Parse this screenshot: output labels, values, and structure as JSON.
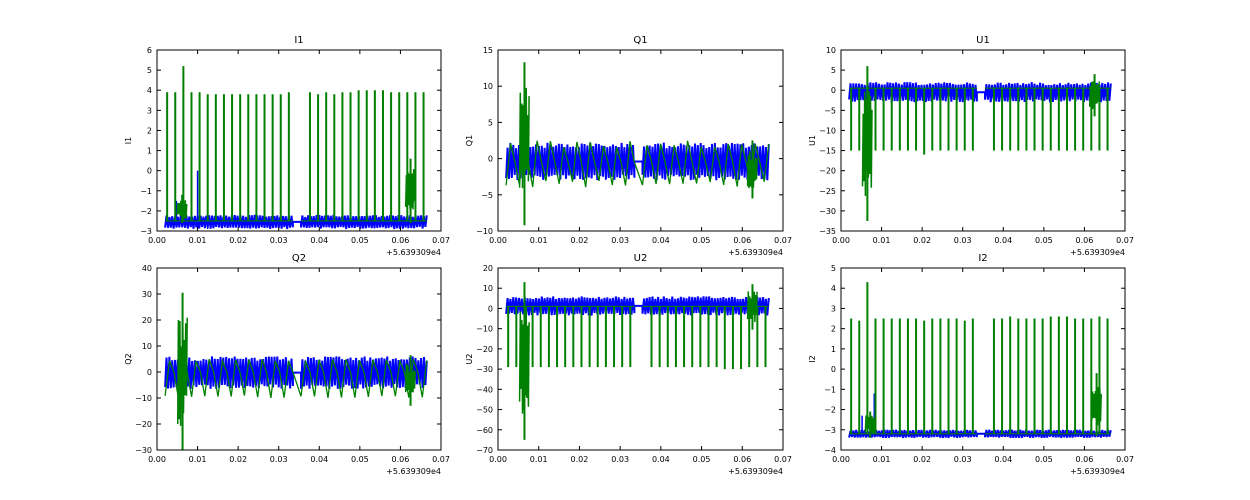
{
  "colors": {
    "series_blue": "#0000ff",
    "series_green": "#008000",
    "axes": "#000000",
    "background": "#ffffff"
  },
  "chart_data": [
    {
      "type": "line",
      "title": "I1",
      "xlabel": "",
      "ylabel": "I1",
      "x_offset_label": "+5.639309e4",
      "xlim": [
        0.0,
        0.07
      ],
      "ylim": [
        -3,
        6
      ],
      "x_ticks": [
        0.0,
        0.01,
        0.02,
        0.03,
        0.04,
        0.05,
        0.06,
        0.07
      ],
      "x_tick_labels": [
        "0.00",
        "0.01",
        "0.02",
        "0.03",
        "0.04",
        "0.05",
        "0.06",
        "0.07"
      ],
      "y_ticks": [
        -3,
        -2,
        -1,
        0,
        1,
        2,
        3,
        4,
        5,
        6
      ],
      "y_tick_labels": [
        "−3",
        "−2",
        "−1",
        "0",
        "1",
        "2",
        "3",
        "4",
        "5",
        "6"
      ],
      "grid": false,
      "series": [
        {
          "color": "blue",
          "band": [
            -2.9,
            -2.2
          ],
          "x_range": [
            0.002,
            0.0665
          ],
          "gap": [
            0.0335,
            0.0355
          ],
          "spikes": [
            {
              "x": 0.01,
              "min": -2.9,
              "max": 0.0
            },
            {
              "x": 0.0048,
              "min": -2.8,
              "max": -1.5
            },
            {
              "x": 0.0125,
              "min": -2.9,
              "max": -1.8
            }
          ]
        },
        {
          "color": "green",
          "base": -2.5,
          "spike_tops": [
            3.9,
            3.9,
            5.2,
            3.9,
            3.9,
            3.8,
            3.8,
            3.8,
            3.8,
            3.8,
            3.8,
            3.8,
            3.8,
            3.8,
            3.8,
            3.9,
            3.9,
            3.8,
            3.9,
            3.8,
            3.9,
            3.9,
            4.0,
            4.0,
            4.0,
            4.0,
            3.9,
            3.9,
            3.9,
            3.9,
            3.9,
            3.9
          ],
          "spike_x_start": 0.0025,
          "spike_spacing": 0.002,
          "x_range": [
            0.002,
            0.0665
          ],
          "gap": [
            0.0335,
            0.0355
          ],
          "bursts": [
            {
              "x": 0.0062,
              "min": -2.6,
              "max": -1.2
            },
            {
              "x": 0.0625,
              "min": -2.6,
              "max": 0.6
            }
          ]
        }
      ]
    },
    {
      "type": "line",
      "title": "Q1",
      "xlabel": "",
      "ylabel": "Q1",
      "x_offset_label": "+5.639309e4",
      "xlim": [
        0.0,
        0.07
      ],
      "ylim": [
        -10,
        15
      ],
      "x_ticks": [
        0.0,
        0.01,
        0.02,
        0.03,
        0.04,
        0.05,
        0.06,
        0.07
      ],
      "x_tick_labels": [
        "0.00",
        "0.01",
        "0.02",
        "0.03",
        "0.04",
        "0.05",
        "0.06",
        "0.07"
      ],
      "y_ticks": [
        -10,
        -5,
        0,
        5,
        10,
        15
      ],
      "y_tick_labels": [
        "−10",
        "−5",
        "0",
        "5",
        "10",
        "15"
      ],
      "grid": false,
      "series": [
        {
          "color": "blue",
          "band": [
            -3.0,
            2.2
          ],
          "x_range": [
            0.002,
            0.0665
          ],
          "gap": [
            0.0335,
            0.0355
          ],
          "spikes": []
        },
        {
          "color": "green",
          "base": -0.5,
          "spike_tops": [],
          "x_range": [
            0.002,
            0.0665
          ],
          "gap": [
            0.0335,
            0.0355
          ],
          "osc": [
            -4.0,
            2.5
          ],
          "bursts": [
            {
              "x": 0.0065,
              "min": -9.2,
              "max": 13.3
            },
            {
              "x": 0.0625,
              "min": -5.5,
              "max": 2.5
            }
          ]
        }
      ]
    },
    {
      "type": "line",
      "title": "U1",
      "xlabel": "",
      "ylabel": "U1",
      "x_offset_label": "+5.639309e4",
      "xlim": [
        0.0,
        0.07
      ],
      "ylim": [
        -35,
        10
      ],
      "x_ticks": [
        0.0,
        0.01,
        0.02,
        0.03,
        0.04,
        0.05,
        0.06,
        0.07
      ],
      "x_tick_labels": [
        "0.00",
        "0.01",
        "0.02",
        "0.03",
        "0.04",
        "0.05",
        "0.06",
        "0.07"
      ],
      "y_ticks": [
        -35,
        -30,
        -25,
        -20,
        -15,
        -10,
        -5,
        0,
        5,
        10
      ],
      "y_tick_labels": [
        "−35",
        "−30",
        "−25",
        "−20",
        "−15",
        "−10",
        "−5",
        "0",
        "5",
        "10"
      ],
      "grid": false,
      "series": [
        {
          "color": "blue",
          "band": [
            -3.0,
            2.0
          ],
          "x_range": [
            0.002,
            0.0665
          ],
          "gap": [
            0.0335,
            0.0355
          ],
          "spikes": []
        },
        {
          "color": "green",
          "base": 0.5,
          "spike_bottoms": [
            -15,
            -15,
            -15,
            -15,
            -15,
            -15,
            -15,
            -15,
            -15,
            -16,
            -15,
            -15,
            -15,
            -15,
            -15,
            -15,
            -15,
            -15,
            -15,
            -15,
            -15,
            -15,
            -15,
            -15,
            -15,
            -15,
            -15,
            -15,
            -15,
            -15,
            -15,
            -14
          ],
          "spike_x_start": 0.0025,
          "spike_spacing": 0.002,
          "x_range": [
            0.002,
            0.0665
          ],
          "gap": [
            0.0335,
            0.0355
          ],
          "bursts": [
            {
              "x": 0.0065,
              "min": -32.5,
              "max": 6.0
            },
            {
              "x": 0.0625,
              "min": -6.5,
              "max": 4.0
            }
          ]
        }
      ]
    },
    {
      "type": "line",
      "title": "Q2",
      "xlabel": "",
      "ylabel": "Q2",
      "x_offset_label": "+5.639309e4",
      "xlim": [
        0.0,
        0.07
      ],
      "ylim": [
        -30,
        40
      ],
      "x_ticks": [
        0.0,
        0.01,
        0.02,
        0.03,
        0.04,
        0.05,
        0.06,
        0.07
      ],
      "x_tick_labels": [
        "0.00",
        "0.01",
        "0.02",
        "0.03",
        "0.04",
        "0.05",
        "0.06",
        "0.07"
      ],
      "y_ticks": [
        -30,
        -20,
        -10,
        0,
        10,
        20,
        30,
        40
      ],
      "y_tick_labels": [
        "−30",
        "−20",
        "−10",
        "0",
        "10",
        "20",
        "30",
        "40"
      ],
      "grid": false,
      "series": [
        {
          "color": "blue",
          "band": [
            -6.5,
            6.0
          ],
          "x_range": [
            0.002,
            0.0665
          ],
          "gap": [
            0.0335,
            0.0355
          ],
          "spikes": []
        },
        {
          "color": "green",
          "base": 0.0,
          "spike_tops": [],
          "x_range": [
            0.002,
            0.0665
          ],
          "gap": [
            0.0335,
            0.0355
          ],
          "osc": [
            -10.0,
            5.0
          ],
          "bursts": [
            {
              "x": 0.0063,
              "min": -30.0,
              "max": 30.5
            },
            {
              "x": 0.0625,
              "min": -13.0,
              "max": 6.5
            }
          ]
        }
      ]
    },
    {
      "type": "line",
      "title": "U2",
      "xlabel": "",
      "ylabel": "U2",
      "x_offset_label": "+5.639309e4",
      "xlim": [
        0.0,
        0.07
      ],
      "ylim": [
        -70,
        20
      ],
      "x_ticks": [
        0.0,
        0.01,
        0.02,
        0.03,
        0.04,
        0.05,
        0.06,
        0.07
      ],
      "x_tick_labels": [
        "0.00",
        "0.01",
        "0.02",
        "0.03",
        "0.04",
        "0.05",
        "0.06",
        "0.07"
      ],
      "y_ticks": [
        -70,
        -60,
        -50,
        -40,
        -30,
        -20,
        -10,
        0,
        10,
        20
      ],
      "y_tick_labels": [
        "−70",
        "−60",
        "−50",
        "−40",
        "−30",
        "−20",
        "−10",
        "0",
        "10",
        "20"
      ],
      "grid": false,
      "series": [
        {
          "color": "blue",
          "band": [
            -3.5,
            6.0
          ],
          "x_range": [
            0.002,
            0.0665
          ],
          "gap": [
            0.0335,
            0.0355
          ],
          "spikes": []
        },
        {
          "color": "green",
          "base": 1.0,
          "spike_bottoms": [
            -29,
            -29,
            -29,
            -29,
            -29,
            -29,
            -29,
            -29,
            -29,
            -29,
            -29,
            -29,
            -29,
            -29,
            -29,
            -29,
            -29,
            -29,
            -29,
            -29,
            -29,
            -29,
            -29,
            -29,
            -29,
            -30,
            -30,
            -30,
            -29,
            -29,
            -29,
            -29
          ],
          "spike_x_start": 0.0025,
          "spike_spacing": 0.002,
          "x_range": [
            0.002,
            0.0665
          ],
          "gap": [
            0.0335,
            0.0355
          ],
          "bursts": [
            {
              "x": 0.0065,
              "min": -65.0,
              "max": 13.0
            },
            {
              "x": 0.0625,
              "min": -10.5,
              "max": 12.0
            }
          ]
        }
      ]
    },
    {
      "type": "line",
      "title": "I2",
      "xlabel": "",
      "ylabel": "I2",
      "x_offset_label": "+5.639309e4",
      "xlim": [
        0.0,
        0.07
      ],
      "ylim": [
        -4,
        5
      ],
      "x_ticks": [
        0.0,
        0.01,
        0.02,
        0.03,
        0.04,
        0.05,
        0.06,
        0.07
      ],
      "x_tick_labels": [
        "0.00",
        "0.01",
        "0.02",
        "0.03",
        "0.04",
        "0.05",
        "0.06",
        "0.07"
      ],
      "y_ticks": [
        -4,
        -3,
        -2,
        -1,
        0,
        1,
        2,
        3,
        4,
        5
      ],
      "y_tick_labels": [
        "−4",
        "−3",
        "−2",
        "−1",
        "0",
        "1",
        "2",
        "3",
        "4",
        "5"
      ],
      "grid": false,
      "series": [
        {
          "color": "blue",
          "band": [
            -3.4,
            -3.0
          ],
          "x_range": [
            0.002,
            0.0665
          ],
          "gap": [
            0.0335,
            0.0355
          ],
          "spikes": [
            {
              "x": 0.0082,
              "min": -3.3,
              "max": -1.2
            },
            {
              "x": 0.0052,
              "min": -3.3,
              "max": -2.3
            },
            {
              "x": 0.0105,
              "min": -3.3,
              "max": -2.4
            }
          ]
        },
        {
          "color": "green",
          "base": -3.2,
          "spike_tops": [
            2.5,
            2.4,
            4.3,
            2.5,
            2.5,
            2.5,
            2.5,
            2.5,
            2.5,
            2.4,
            2.5,
            2.5,
            2.5,
            2.5,
            2.4,
            2.5,
            2.5,
            2.5,
            2.6,
            2.5,
            2.5,
            2.5,
            2.5,
            2.6,
            2.6,
            2.6,
            2.5,
            2.5,
            2.5,
            2.6,
            2.5,
            2.5
          ],
          "spike_x_start": 0.0025,
          "spike_spacing": 0.002,
          "x_range": [
            0.002,
            0.0665
          ],
          "gap": [
            0.0335,
            0.0355
          ],
          "bursts": [
            {
              "x": 0.0072,
              "min": -3.4,
              "max": -2.1
            },
            {
              "x": 0.063,
              "min": -3.3,
              "max": -0.2
            }
          ]
        }
      ]
    }
  ]
}
